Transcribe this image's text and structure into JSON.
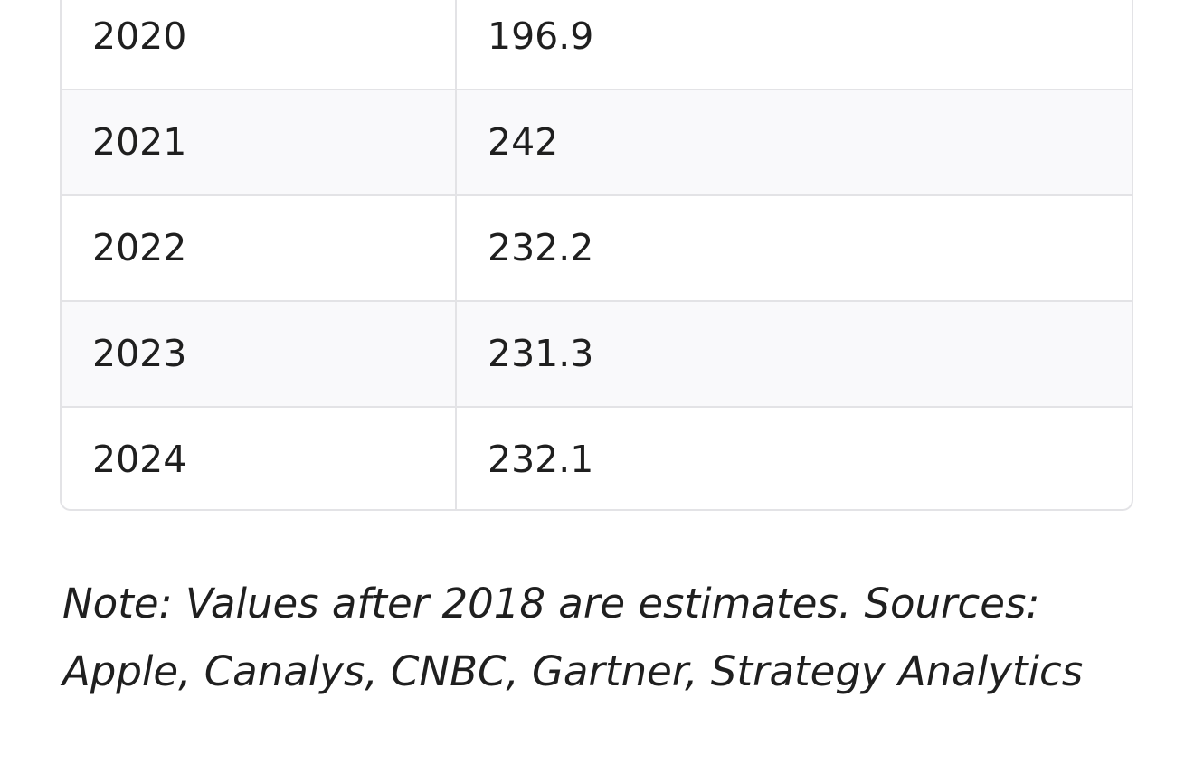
{
  "table": {
    "rows": [
      {
        "year": "2020",
        "value": "196.9"
      },
      {
        "year": "2021",
        "value": "242"
      },
      {
        "year": "2022",
        "value": "232.2"
      },
      {
        "year": "2023",
        "value": "231.3"
      },
      {
        "year": "2024",
        "value": "232.1"
      }
    ]
  },
  "note": "Note: Values after 2018 are estimates. Sources: Apple, Canalys, CNBC, Gartner, Strategy Analytics"
}
